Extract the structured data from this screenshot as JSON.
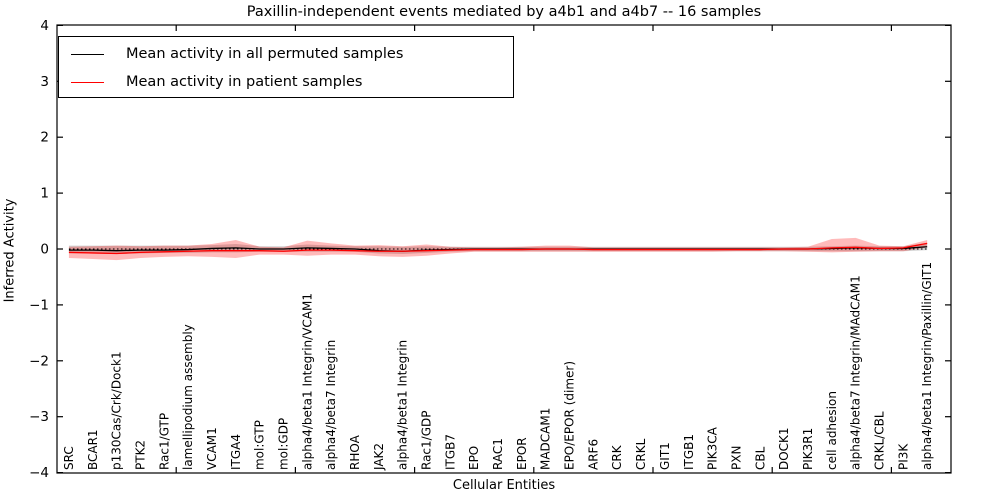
{
  "figure": {
    "title": "Paxillin-independent events mediated by a4b1 and a4b7 -- 16 samples",
    "xlabel": "Cellular Entities",
    "ylabel": "Inferred Activity"
  },
  "chart_data": {
    "type": "line",
    "title": "Paxillin-independent events mediated by a4b1 and a4b7 -- 16 samples",
    "xlabel": "Cellular Entities",
    "ylabel": "Inferred Activity",
    "ylim": [
      -4,
      4
    ],
    "yticks": [
      -4,
      -3,
      -2,
      -1,
      0,
      1,
      2,
      3,
      4
    ],
    "xticks_every": 5,
    "grid": false,
    "legend_position": "upper left",
    "zero_reference_line": {
      "y": 0,
      "style": "dotted",
      "color": "#000000"
    },
    "categories": [
      "SRC",
      "BCAR1",
      "p130Cas/Crk/Dock1",
      "PTK2",
      "Rac1/GTP",
      "lamellipodium assembly",
      "VCAM1",
      "ITGA4",
      "mol:GTP",
      "mol:GDP",
      "alpha4/beta1 Integrin/VCAM1",
      "alpha4/beta7 Integrin",
      "RHOA",
      "JAK2",
      "alpha4/beta1 Integrin",
      "Rac1/GDP",
      "ITGB7",
      "EPO",
      "RAC1",
      "EPOR",
      "MADCAM1",
      "EPO/EPOR (dimer)",
      "ARF6",
      "CRK",
      "CRKL",
      "GIT1",
      "ITGB1",
      "PIK3CA",
      "PXN",
      "CBL",
      "DOCK1",
      "PIK3R1",
      "cell adhesion",
      "alpha4/beta7 Integrin/MAdCAM1",
      "CRKL/CBL",
      "PI3K",
      "alpha4/beta1 Integrin/Paxillin/GIT1"
    ],
    "series": [
      {
        "name": "Mean activity in all permuted samples",
        "color": "#000000",
        "line_style": "solid",
        "band_color": "#999999",
        "band_opacity": 0.45,
        "values": [
          -0.02,
          -0.02,
          -0.03,
          -0.02,
          -0.02,
          -0.01,
          0.01,
          0.02,
          0.0,
          0.0,
          0.02,
          0.01,
          0.0,
          -0.03,
          -0.04,
          -0.02,
          -0.01,
          0.0,
          0.0,
          0.0,
          0.0,
          0.0,
          0.0,
          0.0,
          0.0,
          0.0,
          0.0,
          0.0,
          0.0,
          0.0,
          0.0,
          0.0,
          0.01,
          0.02,
          0.01,
          0.01,
          0.04
        ],
        "band_upper": [
          0.06,
          0.06,
          0.06,
          0.06,
          0.06,
          0.06,
          0.07,
          0.09,
          0.05,
          0.05,
          0.08,
          0.06,
          0.05,
          0.05,
          0.04,
          0.05,
          0.04,
          0.04,
          0.04,
          0.04,
          0.04,
          0.04,
          0.04,
          0.04,
          0.04,
          0.04,
          0.04,
          0.04,
          0.04,
          0.04,
          0.04,
          0.04,
          0.05,
          0.06,
          0.05,
          0.05,
          0.11
        ],
        "band_lower": [
          -0.08,
          -0.08,
          -0.09,
          -0.08,
          -0.07,
          -0.07,
          -0.06,
          -0.06,
          -0.05,
          -0.05,
          -0.05,
          -0.05,
          -0.05,
          -0.08,
          -0.09,
          -0.07,
          -0.05,
          -0.04,
          -0.04,
          -0.04,
          -0.04,
          -0.04,
          -0.04,
          -0.04,
          -0.04,
          -0.04,
          -0.04,
          -0.04,
          -0.04,
          -0.04,
          -0.04,
          -0.04,
          -0.04,
          -0.04,
          -0.04,
          -0.04,
          -0.02
        ]
      },
      {
        "name": "Mean activity in patient samples",
        "color": "#ff0000",
        "line_style": "solid",
        "band_color": "#ff0000",
        "band_opacity": 0.27,
        "values": [
          -0.06,
          -0.07,
          -0.08,
          -0.06,
          -0.05,
          -0.04,
          -0.03,
          -0.03,
          -0.03,
          -0.04,
          -0.02,
          -0.02,
          -0.03,
          -0.04,
          -0.04,
          -0.03,
          -0.02,
          -0.01,
          -0.01,
          -0.01,
          0.0,
          0.0,
          -0.01,
          -0.01,
          -0.01,
          -0.01,
          -0.01,
          -0.01,
          -0.01,
          -0.01,
          0.0,
          0.0,
          0.02,
          0.03,
          0.01,
          0.02,
          0.1
        ],
        "band_upper": [
          0.04,
          0.05,
          0.06,
          0.05,
          0.06,
          0.06,
          0.09,
          0.16,
          0.04,
          0.03,
          0.15,
          0.1,
          0.06,
          0.07,
          0.05,
          0.08,
          0.04,
          0.03,
          0.03,
          0.04,
          0.06,
          0.06,
          0.03,
          0.03,
          0.03,
          0.03,
          0.03,
          0.03,
          0.03,
          0.03,
          0.03,
          0.04,
          0.18,
          0.2,
          0.06,
          0.05,
          0.16
        ],
        "band_lower": [
          -0.16,
          -0.18,
          -0.2,
          -0.16,
          -0.14,
          -0.13,
          -0.14,
          -0.16,
          -0.1,
          -0.1,
          -0.12,
          -0.1,
          -0.1,
          -0.13,
          -0.14,
          -0.12,
          -0.08,
          -0.05,
          -0.05,
          -0.05,
          -0.05,
          -0.05,
          -0.05,
          -0.05,
          -0.05,
          -0.05,
          -0.05,
          -0.05,
          -0.04,
          -0.04,
          -0.04,
          -0.05,
          -0.06,
          -0.05,
          -0.04,
          -0.04,
          0.03
        ]
      }
    ]
  }
}
